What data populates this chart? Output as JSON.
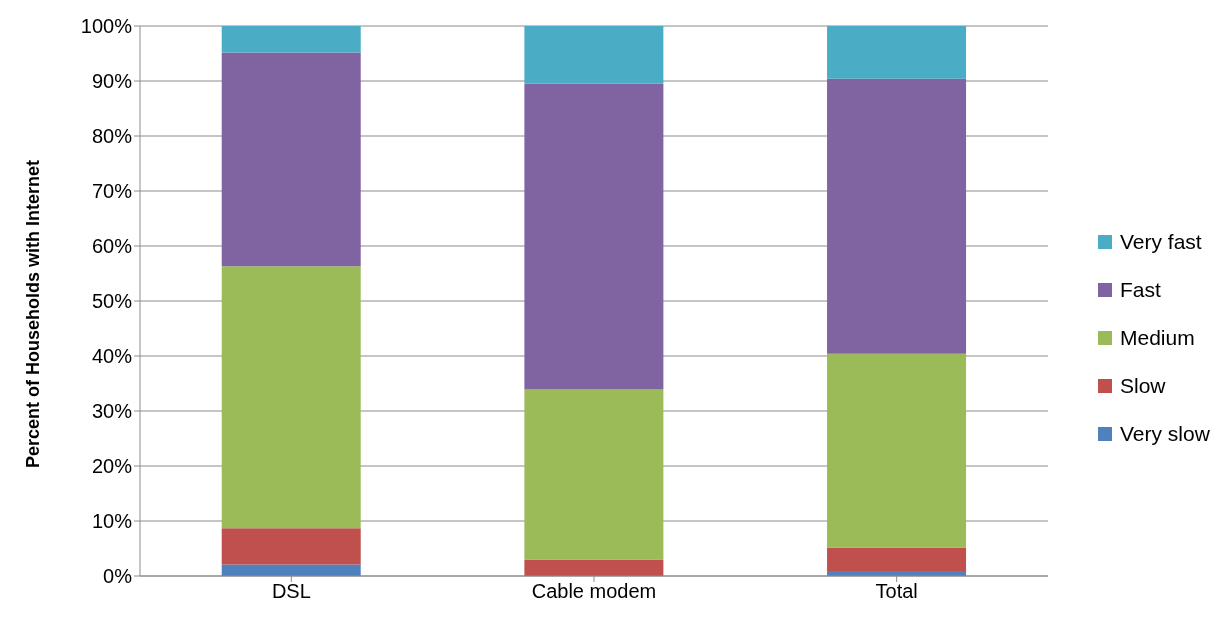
{
  "chart_data": {
    "type": "bar",
    "stacked": true,
    "ylabel": "Percent of Households with Internet",
    "categories": [
      "DSL",
      "Cable modem",
      "Total"
    ],
    "series": [
      {
        "name": "Very slow",
        "color": "#4f81bd",
        "values": [
          2.1,
          null,
          0.9
        ]
      },
      {
        "name": "Slow",
        "color": "#c0504d",
        "values": [
          6.6,
          3.0,
          4.3
        ]
      },
      {
        "name": "Medium",
        "color": "#9bbb59",
        "values": [
          47.6,
          30.9,
          35.2
        ]
      },
      {
        "name": "Fast",
        "color": "#8064a2",
        "values": [
          38.9,
          55.6,
          50.0
        ]
      },
      {
        "name": "Very fast",
        "color": "#4bacc6",
        "values": [
          4.8,
          10.5,
          9.6
        ]
      }
    ],
    "ylim": [
      0,
      100
    ],
    "yticks": [
      {
        "value": 0,
        "label": "0%"
      },
      {
        "value": 10,
        "label": "10%"
      },
      {
        "value": 20,
        "label": "20%"
      },
      {
        "value": 30,
        "label": "30%"
      },
      {
        "value": 40,
        "label": "40%"
      },
      {
        "value": 50,
        "label": "50%"
      },
      {
        "value": 60,
        "label": "60%"
      },
      {
        "value": 70,
        "label": "70%"
      },
      {
        "value": 80,
        "label": "80%"
      },
      {
        "value": 90,
        "label": "90%"
      },
      {
        "value": 100,
        "label": "100%"
      }
    ],
    "grid": "y",
    "legend": "right"
  }
}
